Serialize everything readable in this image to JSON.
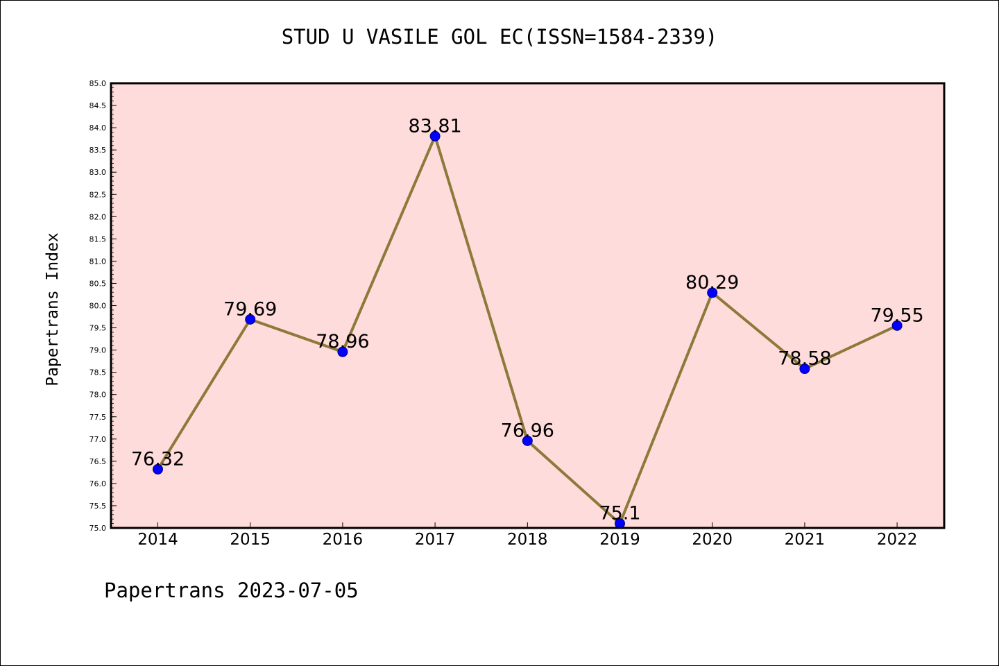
{
  "chart_data": {
    "type": "line",
    "title": "STUD U VASILE GOL EC(ISSN=1584-2339)",
    "xlabel": "",
    "ylabel": "Papertrans Index",
    "categories": [
      "2014",
      "2015",
      "2016",
      "2017",
      "2018",
      "2019",
      "2020",
      "2021",
      "2022"
    ],
    "series": [
      {
        "values": [
          76.32,
          79.69,
          78.96,
          83.81,
          76.96,
          75.1,
          80.29,
          78.58,
          79.55
        ],
        "data_labels": [
          "76.32",
          "79.69",
          "78.96",
          "83.81",
          "76.96",
          "75.1",
          "80.29",
          "78.58",
          "79.55"
        ]
      }
    ],
    "ylim": [
      75.0,
      85.0
    ],
    "yticks": [
      "75.0",
      "75.5",
      "76.0",
      "76.5",
      "77.0",
      "77.5",
      "78.0",
      "78.5",
      "79.0",
      "79.5",
      "80.0",
      "80.5",
      "81.0",
      "81.5",
      "82.0",
      "82.5",
      "83.0",
      "83.5",
      "84.0",
      "84.5",
      "85.0"
    ],
    "grid": false,
    "colors": {
      "background": "#ffdcdc",
      "line": "#8c7a3a",
      "marker": "#0000ff"
    }
  },
  "footer": "Papertrans 2023-07-05"
}
